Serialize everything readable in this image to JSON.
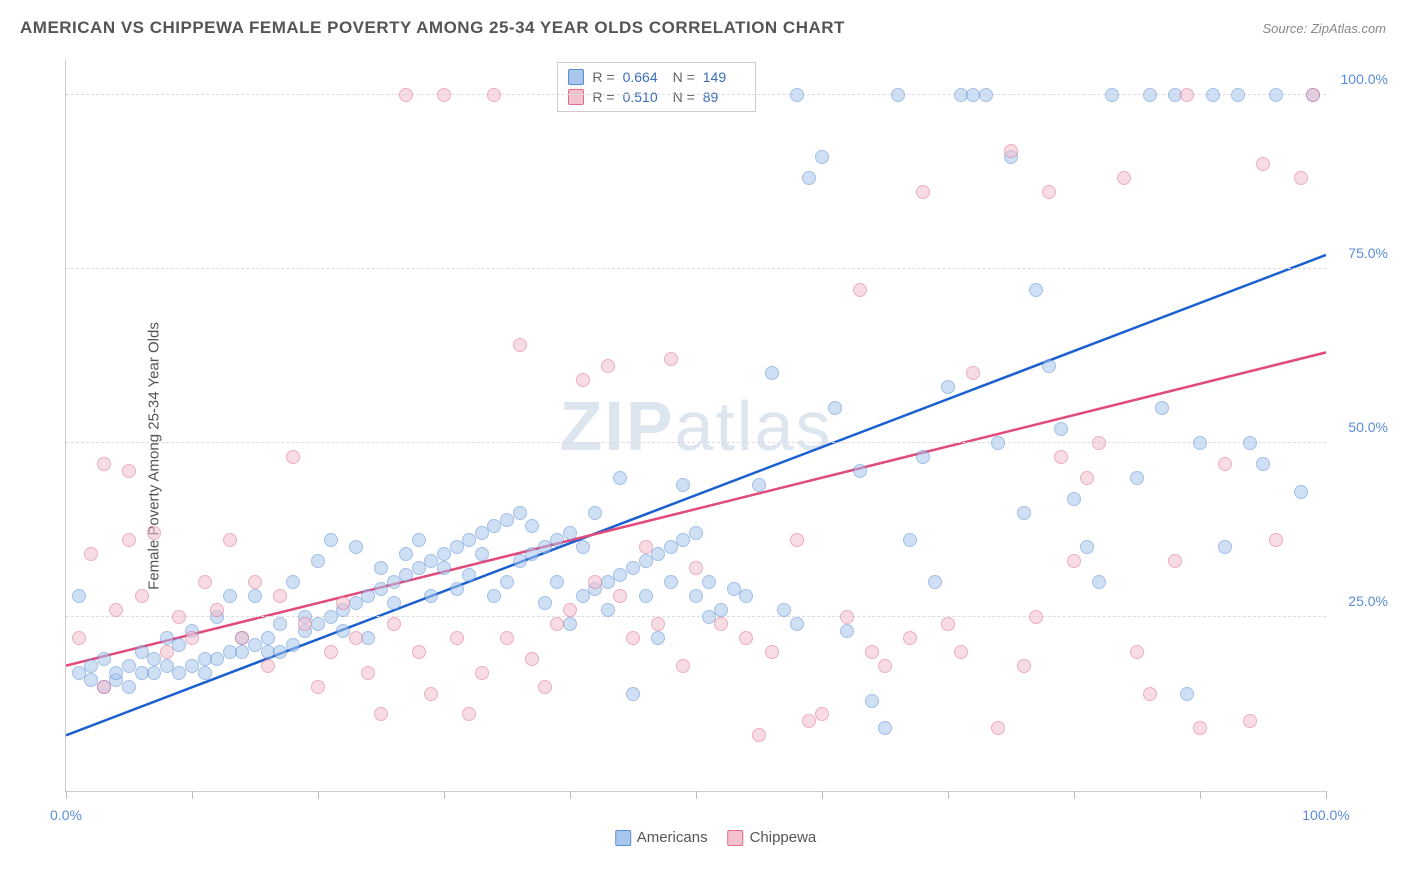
{
  "title": "AMERICAN VS CHIPPEWA FEMALE POVERTY AMONG 25-34 YEAR OLDS CORRELATION CHART",
  "source": "Source: ZipAtlas.com",
  "ylabel": "Female Poverty Among 25-34 Year Olds",
  "watermark_a": "ZIP",
  "watermark_b": "atlas",
  "chart": {
    "type": "scatter",
    "xlim": [
      0,
      100
    ],
    "ylim": [
      0,
      105
    ],
    "background_color": "#ffffff",
    "grid_color": "#dddddd",
    "axis_color": "#cccccc",
    "tick_color": "#bbbbbb",
    "tick_label_color": "#5b8dd6",
    "tick_label_fontsize": 14,
    "y_gridlines": [
      25,
      50,
      75,
      100
    ],
    "y_tick_labels": [
      "25.0%",
      "50.0%",
      "75.0%",
      "100.0%"
    ],
    "x_ticks": [
      0,
      10,
      20,
      30,
      40,
      50,
      60,
      70,
      80,
      90,
      100
    ],
    "x_tick_labels": {
      "0": "0.0%",
      "100": "100.0%"
    },
    "marker_size": 14,
    "marker_opacity": 0.55,
    "series": [
      {
        "name": "Americans",
        "fill_color": "#a9c6ec",
        "stroke_color": "#5b8dd6",
        "trend_color": "#1a5fd0",
        "trend_width": 2.5,
        "trend": {
          "x1": 0,
          "y1": 8,
          "x2": 100,
          "y2": 77
        },
        "R": "0.664",
        "N": "149",
        "points": [
          [
            1,
            28
          ],
          [
            1,
            17
          ],
          [
            2,
            16
          ],
          [
            2,
            18
          ],
          [
            3,
            15
          ],
          [
            3,
            19
          ],
          [
            4,
            16
          ],
          [
            4,
            17
          ],
          [
            5,
            18
          ],
          [
            5,
            15
          ],
          [
            6,
            17
          ],
          [
            6,
            20
          ],
          [
            7,
            17
          ],
          [
            7,
            19
          ],
          [
            8,
            18
          ],
          [
            8,
            22
          ],
          [
            9,
            17
          ],
          [
            9,
            21
          ],
          [
            10,
            18
          ],
          [
            10,
            23
          ],
          [
            11,
            19
          ],
          [
            11,
            17
          ],
          [
            12,
            19
          ],
          [
            12,
            25
          ],
          [
            13,
            20
          ],
          [
            13,
            28
          ],
          [
            14,
            20
          ],
          [
            14,
            22
          ],
          [
            15,
            21
          ],
          [
            15,
            28
          ],
          [
            16,
            22
          ],
          [
            16,
            20
          ],
          [
            17,
            24
          ],
          [
            17,
            20
          ],
          [
            18,
            21
          ],
          [
            18,
            30
          ],
          [
            19,
            23
          ],
          [
            19,
            25
          ],
          [
            20,
            24
          ],
          [
            20,
            33
          ],
          [
            21,
            25
          ],
          [
            21,
            36
          ],
          [
            22,
            26
          ],
          [
            22,
            23
          ],
          [
            23,
            27
          ],
          [
            23,
            35
          ],
          [
            24,
            28
          ],
          [
            24,
            22
          ],
          [
            25,
            29
          ],
          [
            25,
            32
          ],
          [
            26,
            30
          ],
          [
            26,
            27
          ],
          [
            27,
            31
          ],
          [
            27,
            34
          ],
          [
            28,
            32
          ],
          [
            28,
            36
          ],
          [
            29,
            33
          ],
          [
            29,
            28
          ],
          [
            30,
            34
          ],
          [
            30,
            32
          ],
          [
            31,
            35
          ],
          [
            31,
            29
          ],
          [
            32,
            36
          ],
          [
            32,
            31
          ],
          [
            33,
            37
          ],
          [
            33,
            34
          ],
          [
            34,
            38
          ],
          [
            34,
            28
          ],
          [
            35,
            39
          ],
          [
            35,
            30
          ],
          [
            36,
            40
          ],
          [
            36,
            33
          ],
          [
            37,
            34
          ],
          [
            37,
            38
          ],
          [
            38,
            35
          ],
          [
            38,
            27
          ],
          [
            39,
            36
          ],
          [
            39,
            30
          ],
          [
            40,
            37
          ],
          [
            40,
            24
          ],
          [
            41,
            28
          ],
          [
            41,
            35
          ],
          [
            42,
            29
          ],
          [
            42,
            40
          ],
          [
            43,
            30
          ],
          [
            43,
            26
          ],
          [
            44,
            31
          ],
          [
            44,
            45
          ],
          [
            45,
            32
          ],
          [
            45,
            14
          ],
          [
            46,
            33
          ],
          [
            46,
            28
          ],
          [
            47,
            34
          ],
          [
            47,
            22
          ],
          [
            48,
            35
          ],
          [
            48,
            30
          ],
          [
            49,
            36
          ],
          [
            49,
            44
          ],
          [
            50,
            37
          ],
          [
            50,
            28
          ],
          [
            51,
            30
          ],
          [
            51,
            25
          ],
          [
            52,
            26
          ],
          [
            53,
            29
          ],
          [
            54,
            28
          ],
          [
            55,
            44
          ],
          [
            56,
            60
          ],
          [
            57,
            26
          ],
          [
            58,
            100
          ],
          [
            58,
            24
          ],
          [
            59,
            88
          ],
          [
            60,
            91
          ],
          [
            61,
            55
          ],
          [
            62,
            23
          ],
          [
            63,
            46
          ],
          [
            64,
            13
          ],
          [
            65,
            9
          ],
          [
            66,
            100
          ],
          [
            67,
            36
          ],
          [
            68,
            48
          ],
          [
            69,
            30
          ],
          [
            70,
            58
          ],
          [
            71,
            100
          ],
          [
            72,
            100
          ],
          [
            73,
            100
          ],
          [
            74,
            50
          ],
          [
            75,
            91
          ],
          [
            76,
            40
          ],
          [
            77,
            72
          ],
          [
            78,
            61
          ],
          [
            79,
            52
          ],
          [
            80,
            42
          ],
          [
            81,
            35
          ],
          [
            82,
            30
          ],
          [
            83,
            100
          ],
          [
            85,
            45
          ],
          [
            86,
            100
          ],
          [
            87,
            55
          ],
          [
            88,
            100
          ],
          [
            89,
            14
          ],
          [
            90,
            50
          ],
          [
            91,
            100
          ],
          [
            92,
            35
          ],
          [
            93,
            100
          ],
          [
            94,
            50
          ],
          [
            95,
            47
          ],
          [
            96,
            100
          ],
          [
            98,
            43
          ],
          [
            99,
            100
          ]
        ]
      },
      {
        "name": "Chippewa",
        "fill_color": "#f4c1ce",
        "stroke_color": "#e06b8b",
        "trend_color": "#e24a7a",
        "trend_width": 2.5,
        "trend": {
          "x1": 0,
          "y1": 18,
          "x2": 100,
          "y2": 63
        },
        "R": "0.510",
        "N": "89",
        "points": [
          [
            1,
            22
          ],
          [
            2,
            34
          ],
          [
            3,
            47
          ],
          [
            3,
            15
          ],
          [
            4,
            26
          ],
          [
            5,
            36
          ],
          [
            5,
            46
          ],
          [
            6,
            28
          ],
          [
            7,
            37
          ],
          [
            8,
            20
          ],
          [
            9,
            25
          ],
          [
            10,
            22
          ],
          [
            11,
            30
          ],
          [
            12,
            26
          ],
          [
            13,
            36
          ],
          [
            14,
            22
          ],
          [
            15,
            30
          ],
          [
            16,
            18
          ],
          [
            17,
            28
          ],
          [
            18,
            48
          ],
          [
            19,
            24
          ],
          [
            20,
            15
          ],
          [
            21,
            20
          ],
          [
            22,
            27
          ],
          [
            23,
            22
          ],
          [
            24,
            17
          ],
          [
            25,
            11
          ],
          [
            26,
            24
          ],
          [
            27,
            100
          ],
          [
            28,
            20
          ],
          [
            29,
            14
          ],
          [
            30,
            100
          ],
          [
            31,
            22
          ],
          [
            32,
            11
          ],
          [
            33,
            17
          ],
          [
            34,
            100
          ],
          [
            35,
            22
          ],
          [
            36,
            64
          ],
          [
            37,
            19
          ],
          [
            38,
            15
          ],
          [
            39,
            24
          ],
          [
            40,
            26
          ],
          [
            41,
            59
          ],
          [
            42,
            30
          ],
          [
            43,
            61
          ],
          [
            44,
            28
          ],
          [
            45,
            22
          ],
          [
            46,
            35
          ],
          [
            47,
            24
          ],
          [
            48,
            62
          ],
          [
            49,
            18
          ],
          [
            50,
            32
          ],
          [
            52,
            24
          ],
          [
            54,
            22
          ],
          [
            55,
            8
          ],
          [
            56,
            20
          ],
          [
            58,
            36
          ],
          [
            59,
            10
          ],
          [
            60,
            11
          ],
          [
            62,
            25
          ],
          [
            63,
            72
          ],
          [
            64,
            20
          ],
          [
            65,
            18
          ],
          [
            67,
            22
          ],
          [
            68,
            86
          ],
          [
            70,
            24
          ],
          [
            71,
            20
          ],
          [
            72,
            60
          ],
          [
            74,
            9
          ],
          [
            75,
            92
          ],
          [
            76,
            18
          ],
          [
            77,
            25
          ],
          [
            78,
            86
          ],
          [
            79,
            48
          ],
          [
            80,
            33
          ],
          [
            81,
            45
          ],
          [
            82,
            50
          ],
          [
            84,
            88
          ],
          [
            85,
            20
          ],
          [
            86,
            14
          ],
          [
            88,
            33
          ],
          [
            89,
            100
          ],
          [
            90,
            9
          ],
          [
            92,
            47
          ],
          [
            94,
            10
          ],
          [
            95,
            90
          ],
          [
            96,
            36
          ],
          [
            98,
            88
          ],
          [
            99,
            100
          ]
        ]
      }
    ]
  },
  "legend": {
    "series1_label": "Americans",
    "series2_label": "Chippewa",
    "r_label": "R =",
    "n_label": "N ="
  }
}
